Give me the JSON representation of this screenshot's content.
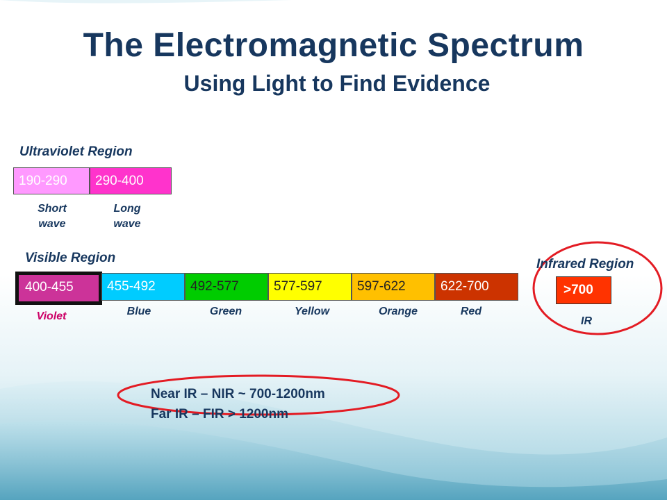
{
  "title": "The Electromagnetic Spectrum",
  "subtitle": "Using Light to Find Evidence",
  "ultraviolet": {
    "heading": "Ultraviolet Region",
    "bands": [
      {
        "range": "190-290",
        "label_line1": "Short",
        "label_line2": "wave",
        "color": "#ff99ff"
      },
      {
        "range": "290-400",
        "label_line1": "Long",
        "label_line2": "wave",
        "color": "#ff33cc"
      }
    ]
  },
  "visible": {
    "heading": "Visible Region",
    "bands": [
      {
        "range": "400-455",
        "label": "Violet",
        "color": "#cc3399",
        "label_color": "#cc0066"
      },
      {
        "range": "455-492",
        "label": "Blue",
        "color": "#00ccff"
      },
      {
        "range": "492-577",
        "label": "Green",
        "color": "#00cc00"
      },
      {
        "range": "577-597",
        "label": "Yellow",
        "color": "#ffff00"
      },
      {
        "range": "597-622",
        "label": "Orange",
        "color": "#ffc000"
      },
      {
        "range": "622-700",
        "label": "Red",
        "color": "#cc3300"
      }
    ]
  },
  "infrared": {
    "heading": "Infrared Region",
    "band": {
      "range": ">700",
      "label": "IR",
      "color": "#ff3300"
    }
  },
  "notes": {
    "near_ir": "Near IR – NIR ~ 700-1200nm",
    "far_ir": "Far IR – FIR > 1200nm"
  },
  "colors": {
    "heading": "#17375e",
    "highlight_ellipse": "#e31b23",
    "background_wave": "#5aa8c2"
  }
}
